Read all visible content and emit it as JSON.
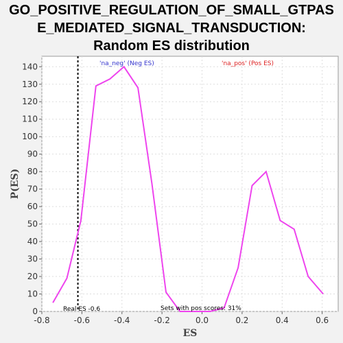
{
  "chart_data": {
    "type": "line",
    "title_lines": [
      "GO_POSITIVE_REGULATION_OF_SMALL_GTPAS",
      "E_MEDIATED_SIGNAL_TRANSDUCTION:",
      "Random ES distribution"
    ],
    "xlabel": "ES",
    "ylabel": "P(ES)",
    "xlim": [
      -0.8,
      0.68
    ],
    "ylim": [
      0,
      146
    ],
    "x_ticks": [
      -0.8,
      -0.6,
      -0.4,
      -0.2,
      0.0,
      0.2,
      0.4,
      0.6
    ],
    "x_tick_labels": [
      "-0.8",
      "-0.6",
      "-0.4",
      "-0.2",
      "0.0",
      "0.2",
      "0.4",
      "0.6"
    ],
    "y_ticks": [
      0,
      10,
      20,
      30,
      40,
      50,
      60,
      70,
      80,
      90,
      100,
      110,
      120,
      130,
      140
    ],
    "grid": true,
    "series": [
      {
        "color": "#ee44ee",
        "points": [
          [
            -0.745,
            5
          ],
          [
            -0.675,
            19
          ],
          [
            -0.605,
            52
          ],
          [
            -0.53,
            129
          ],
          [
            -0.46,
            133
          ],
          [
            -0.39,
            140
          ],
          [
            -0.32,
            128
          ],
          [
            -0.25,
            73
          ],
          [
            -0.18,
            11
          ],
          [
            -0.11,
            0
          ],
          [
            -0.04,
            0
          ],
          [
            0.04,
            0
          ],
          [
            0.11,
            2
          ],
          [
            0.18,
            25
          ],
          [
            0.25,
            72
          ],
          [
            0.32,
            80
          ],
          [
            0.39,
            52
          ],
          [
            0.46,
            47
          ],
          [
            0.53,
            20
          ],
          [
            0.605,
            10
          ]
        ]
      }
    ],
    "real_es": {
      "value": -0.62,
      "label": "Real ES -0.6"
    },
    "annotations": {
      "neg": "'na_neg' (Neg ES)",
      "pos": "'na_pos' (Pos ES)",
      "pos_scores": "Sets with pos scores: 31%"
    },
    "colors": {
      "neg": "#3333cc",
      "pos": "#dd2222",
      "line": "#ee44ee"
    }
  }
}
